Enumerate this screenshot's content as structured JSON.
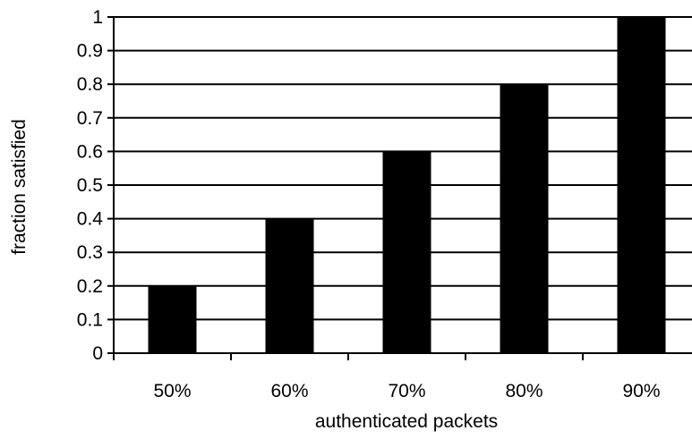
{
  "chart_data": {
    "type": "bar",
    "title": "",
    "xlabel": "authenticated packets",
    "ylabel": "fraction satisfied",
    "categories": [
      "50%",
      "60%",
      "70%",
      "80%",
      "90%"
    ],
    "values": [
      0.2,
      0.4,
      0.6,
      0.8,
      1.0
    ],
    "ylim": [
      0,
      1
    ],
    "yticks": [
      "0",
      "0.1",
      "0.2",
      "0.3",
      "0.4",
      "0.5",
      "0.6",
      "0.7",
      "0.8",
      "0.9",
      "1"
    ],
    "grid": "horizontal",
    "legend": "none",
    "bar_color": "#000000"
  }
}
